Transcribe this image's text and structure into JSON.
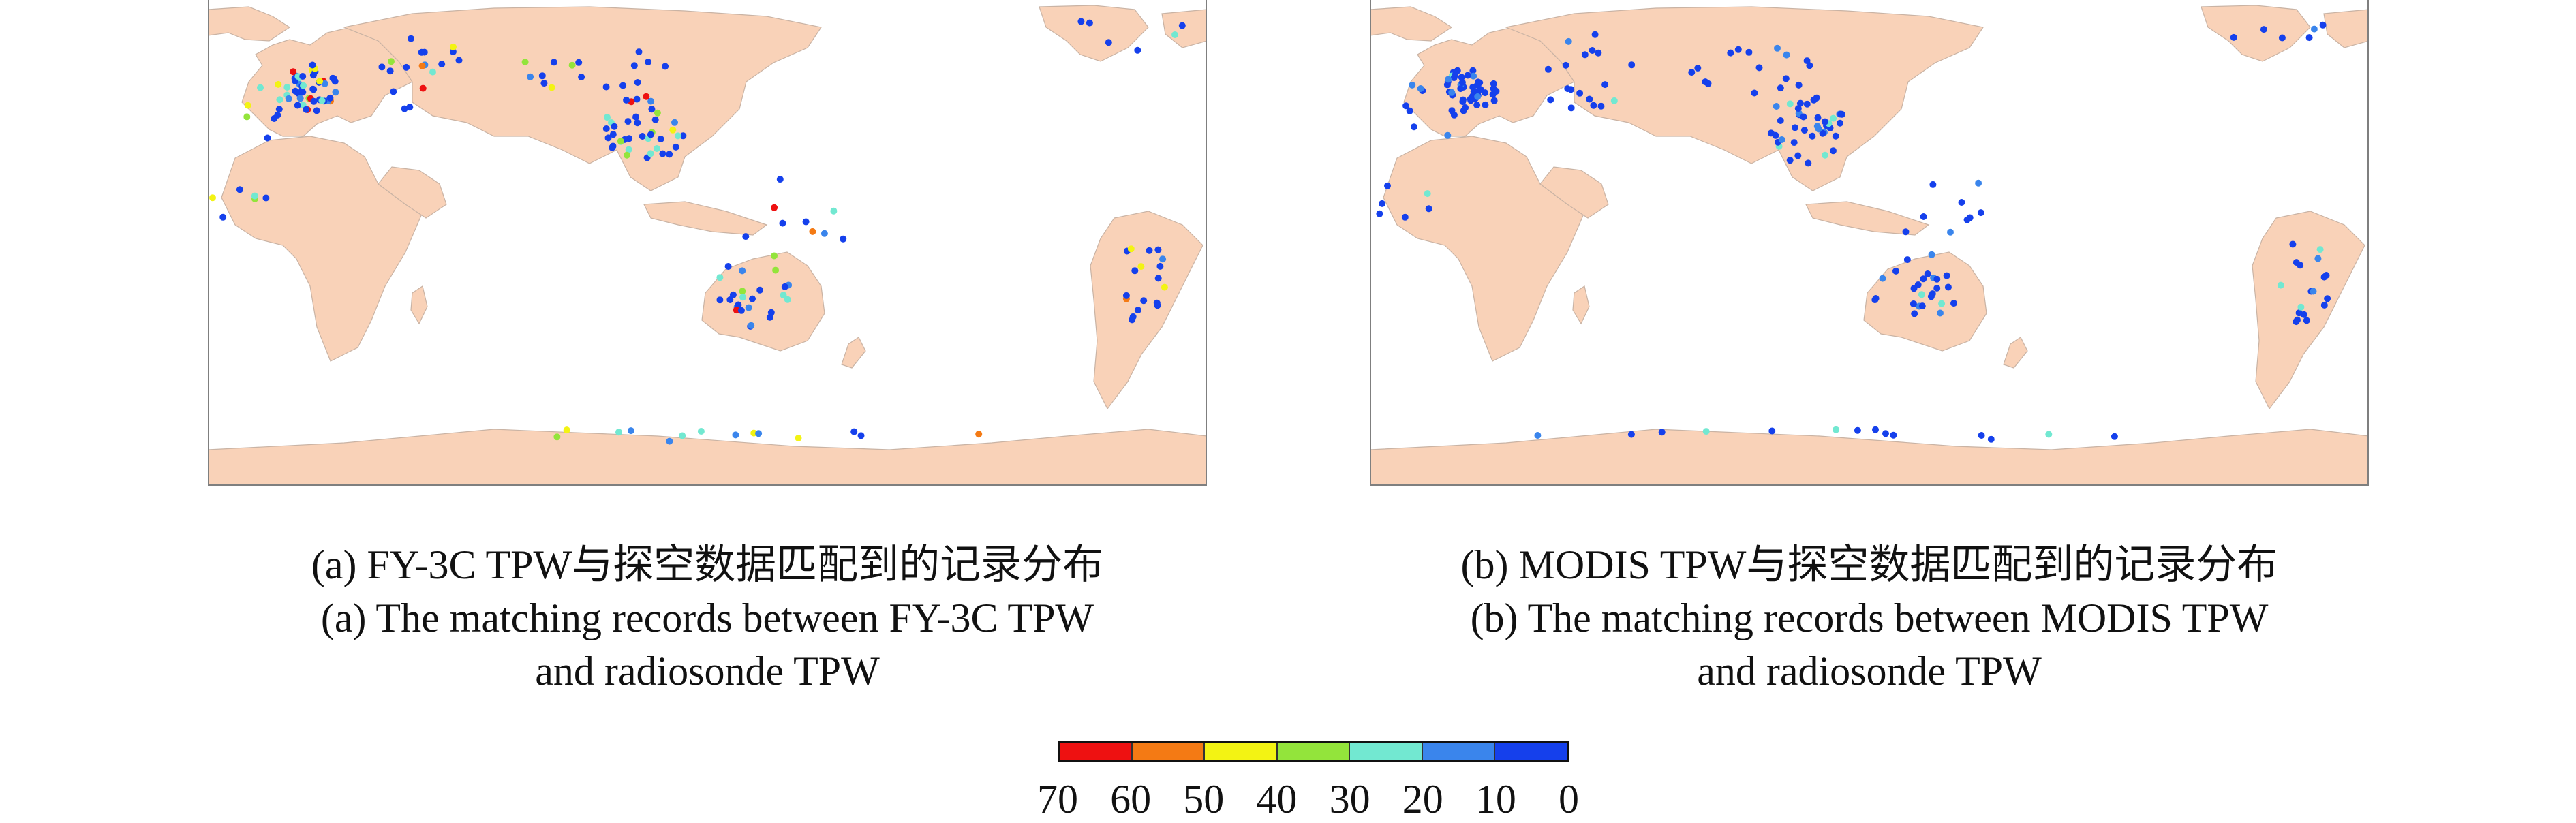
{
  "colors": {
    "land": "#f9d2b8",
    "ocean": "#ffffff",
    "lakes": "#bfe8e2",
    "frame": "#7f7f7f"
  },
  "colorbar": {
    "ticks": [
      "70",
      "60",
      "50",
      "40",
      "30",
      "20",
      "10",
      "0"
    ],
    "segments": [
      "#ee1111",
      "#f47a14",
      "#f3f313",
      "#93e43b",
      "#72e8d1",
      "#3a85ec",
      "#1540ec"
    ]
  },
  "panels": [
    {
      "id": "a",
      "caption_zh": "(a) FY-3C TPW与探空数据匹配到的记录分布",
      "caption_en_1": "(a) The matching records between FY-3C TPW",
      "caption_en_2": "and radiosonde TPW"
    },
    {
      "id": "b",
      "caption_zh": "(b) MODIS TPW与探空数据匹配到的记录分布",
      "caption_en_1": "(b) The matching records between MODIS TPW",
      "caption_en_2": "and radiosonde TPW"
    }
  ]
}
